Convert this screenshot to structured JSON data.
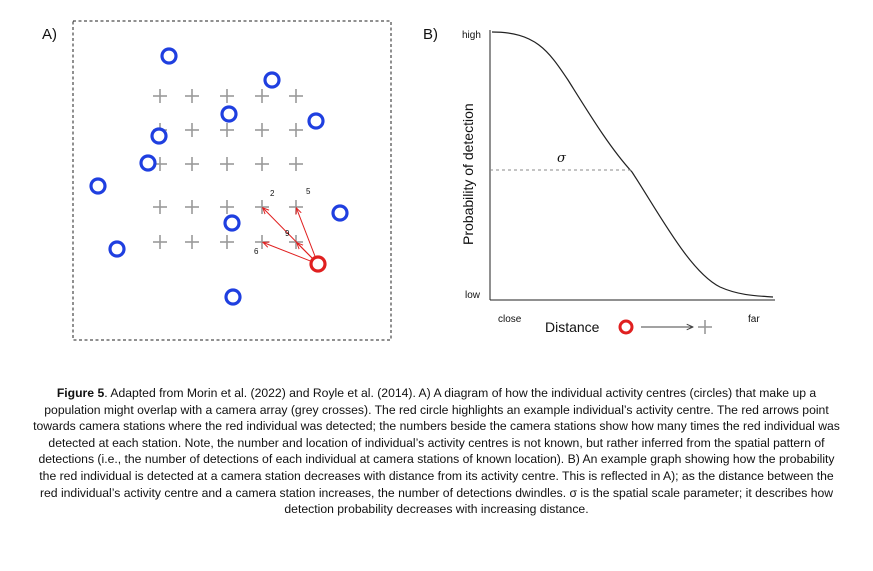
{
  "panel_a": {
    "label": "A)",
    "crosses": [
      [
        160,
        96
      ],
      [
        192,
        96
      ],
      [
        227,
        96
      ],
      [
        262,
        96
      ],
      [
        296,
        96
      ],
      [
        160,
        130
      ],
      [
        192,
        130
      ],
      [
        227,
        130
      ],
      [
        262,
        130
      ],
      [
        296,
        130
      ],
      [
        160,
        164
      ],
      [
        192,
        164
      ],
      [
        227,
        164
      ],
      [
        262,
        164
      ],
      [
        296,
        164
      ],
      [
        160,
        207
      ],
      [
        192,
        207
      ],
      [
        227,
        207
      ],
      [
        262,
        207
      ],
      [
        296,
        207
      ],
      [
        160,
        242
      ],
      [
        192,
        242
      ],
      [
        227,
        242
      ],
      [
        262,
        242
      ],
      [
        296,
        242
      ]
    ],
    "blue_circles": [
      [
        169,
        56
      ],
      [
        272,
        80
      ],
      [
        229,
        114
      ],
      [
        316,
        121
      ],
      [
        159,
        136
      ],
      [
        148,
        163
      ],
      [
        98,
        186
      ],
      [
        340,
        213
      ],
      [
        232,
        223
      ],
      [
        117,
        249
      ],
      [
        233,
        297
      ]
    ],
    "red_circle": [
      318,
      264
    ],
    "arrow_targets": [
      [
        262,
        207
      ],
      [
        296,
        207
      ],
      [
        262,
        242
      ],
      [
        296,
        242
      ]
    ],
    "counts": [
      {
        "text": "2",
        "at": [
          270,
          196
        ]
      },
      {
        "text": "5",
        "at": [
          306,
          194
        ]
      },
      {
        "text": "9",
        "at": [
          285,
          236
        ]
      },
      {
        "text": "6",
        "at": [
          254,
          254
        ]
      }
    ]
  },
  "panel_b": {
    "label": "B)",
    "y_high": "high",
    "y_low": "low",
    "ylabel": "Probability of detection",
    "x_close": "close",
    "x_far": "far",
    "xlabel": "Distance",
    "sigma": "σ"
  },
  "caption": {
    "bold": "Figure 5",
    "text": ". Adapted from Morin et al. (2022) and Royle et al. (2014). A) A diagram of how the individual activity centres (circles) that make up a population might overlap with a camera array (grey crosses). The red circle highlights an example individual’s activity centre. The red arrows point towards camera stations where the red individual was detected; the numbers beside the camera stations show how many times the red individual was detected at each station. Note, the number and location of individual’s activity centres is not known, but rather inferred from the spatial pattern of detections (i.e., the number of detections of each individual at camera stations of known location). B) An example graph showing how the probability the red individual is detected at a camera station decreases with distance from its activity centre. This is reflected in A); as the distance between the red individual’s activity centre and a camera station increases, the number of detections dwindles. σ is the spatial scale parameter; it describes how detection probability decreases with increasing distance."
  }
}
